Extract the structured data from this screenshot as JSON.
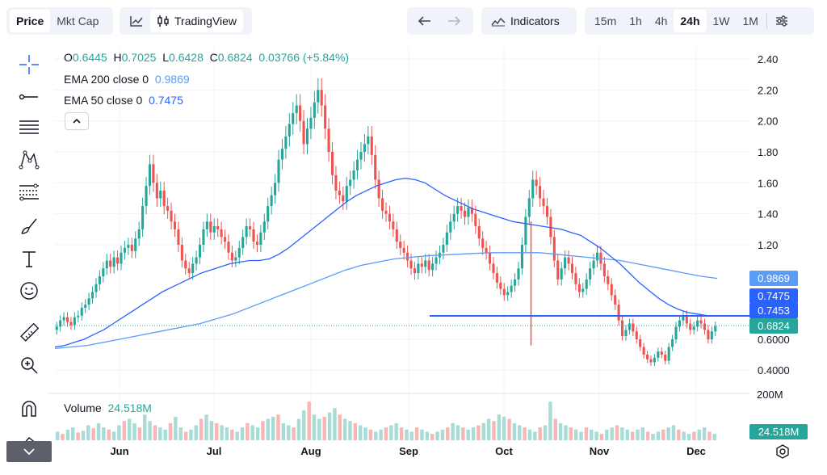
{
  "toolbar": {
    "price_tab": "Price",
    "mktcap_tab": "Mkt Cap",
    "tradingview_label": "TradingView",
    "indicators_label": "Indicators",
    "timeframes": [
      "15m",
      "1h",
      "4h",
      "24h",
      "1W",
      "1M"
    ],
    "active_timeframe": "24h"
  },
  "legend": {
    "o_label": "O",
    "o_value": "0.6445",
    "h_label": "H",
    "h_value": "0.7025",
    "l_label": "L",
    "l_value": "0.6428",
    "c_label": "C",
    "c_value": "0.6824",
    "change": "0.03766 (+5.84%)",
    "ema200_label": "EMA 200 close 0",
    "ema200_value": "0.9869",
    "ema50_label": "EMA 50 close 0",
    "ema50_value": "0.7475"
  },
  "price_tags": {
    "ema200": "0.9869",
    "ema50": "0.7475",
    "hline": "0.7453",
    "last": "0.6824",
    "volume": "24.518M"
  },
  "volume": {
    "label": "Volume",
    "value": "24.518M",
    "axis_label": "200M"
  },
  "colors": {
    "up": "#26a69a",
    "down": "#ef5350",
    "ema200": "#5b9cf6",
    "ema50": "#2962ff",
    "hline": "#2962ff"
  },
  "chart_data": {
    "type": "candlestick",
    "y_axis_ticks": [
      "2.40",
      "2.20",
      "2.00",
      "1.80",
      "1.60",
      "1.40",
      "1.20",
      "0.6000",
      "0.4000"
    ],
    "y_range": [
      0.3,
      2.45
    ],
    "x_axis_labels": [
      "Jun",
      "Jul",
      "Aug",
      "Sep",
      "Oct",
      "Nov",
      "Dec"
    ],
    "horizontal_line": 0.7453,
    "last_close": 0.6824,
    "ema200_last": 0.9869,
    "ema50_last": 0.7475,
    "close_series": [
      0.68,
      0.72,
      0.74,
      0.71,
      0.69,
      0.74,
      0.75,
      0.8,
      0.82,
      0.86,
      0.9,
      0.95,
      1.0,
      1.05,
      1.1,
      1.06,
      1.12,
      1.08,
      1.15,
      1.18,
      1.2,
      1.16,
      1.24,
      1.3,
      1.45,
      1.58,
      1.72,
      1.6,
      1.5,
      1.55,
      1.45,
      1.42,
      1.35,
      1.3,
      1.2,
      1.1,
      1.05,
      1.02,
      1.08,
      1.12,
      1.2,
      1.3,
      1.35,
      1.28,
      1.32,
      1.3,
      1.25,
      1.22,
      1.15,
      1.1,
      1.12,
      1.18,
      1.25,
      1.32,
      1.3,
      1.22,
      1.2,
      1.28,
      1.35,
      1.45,
      1.52,
      1.6,
      1.75,
      1.82,
      1.9,
      1.98,
      2.05,
      2.1,
      2.0,
      1.85,
      1.95,
      2.02,
      2.12,
      2.2,
      2.1,
      1.95,
      1.8,
      1.65,
      1.55,
      1.52,
      1.48,
      1.58,
      1.62,
      1.68,
      1.75,
      1.8,
      1.85,
      1.9,
      1.78,
      1.62,
      1.5,
      1.42,
      1.4,
      1.35,
      1.3,
      1.22,
      1.18,
      1.15,
      1.1,
      1.05,
      1.02,
      1.08,
      1.06,
      1.1,
      1.04,
      1.08,
      1.12,
      1.15,
      1.2,
      1.28,
      1.35,
      1.4,
      1.45,
      1.42,
      1.38,
      1.44,
      1.4,
      1.32,
      1.24,
      1.18,
      1.15,
      1.08,
      1.02,
      0.96,
      0.92,
      0.88,
      0.9,
      0.94,
      0.98,
      1.05,
      1.2,
      1.38,
      1.5,
      1.62,
      1.58,
      1.5,
      1.45,
      1.38,
      1.25,
      1.1,
      0.98,
      1.05,
      1.12,
      1.08,
      1.02,
      0.95,
      0.9,
      0.92,
      0.98,
      1.05,
      1.1,
      1.15,
      1.08,
      1.0,
      0.95,
      0.88,
      0.82,
      0.72,
      0.62,
      0.66,
      0.7,
      0.65,
      0.6,
      0.55,
      0.5,
      0.47,
      0.45,
      0.48,
      0.52,
      0.5,
      0.46,
      0.55,
      0.6,
      0.68,
      0.72,
      0.75,
      0.7,
      0.66,
      0.68,
      0.72,
      0.7,
      0.66,
      0.6,
      0.65,
      0.6824
    ],
    "ema50_series": [
      0.55,
      0.56,
      0.58,
      0.6,
      0.63,
      0.66,
      0.7,
      0.74,
      0.78,
      0.82,
      0.86,
      0.9,
      0.93,
      0.96,
      0.99,
      1.02,
      1.04,
      1.06,
      1.08,
      1.09,
      1.1,
      1.1,
      1.11,
      1.14,
      1.18,
      1.23,
      1.28,
      1.33,
      1.38,
      1.43,
      1.48,
      1.52,
      1.55,
      1.58,
      1.6,
      1.62,
      1.63,
      1.62,
      1.6,
      1.56,
      1.52,
      1.49,
      1.46,
      1.43,
      1.41,
      1.39,
      1.37,
      1.35,
      1.34,
      1.33,
      1.32,
      1.31,
      1.3,
      1.28,
      1.26,
      1.22,
      1.18,
      1.13,
      1.08,
      1.02,
      0.96,
      0.91,
      0.86,
      0.82,
      0.79,
      0.77,
      0.76,
      0.75,
      0.7475
    ],
    "ema200_series": [
      0.54,
      0.55,
      0.56,
      0.58,
      0.6,
      0.62,
      0.64,
      0.66,
      0.68,
      0.7,
      0.73,
      0.76,
      0.8,
      0.84,
      0.88,
      0.92,
      0.96,
      1.0,
      1.04,
      1.07,
      1.09,
      1.11,
      1.12,
      1.13,
      1.135,
      1.14,
      1.145,
      1.15,
      1.15,
      1.15,
      1.15,
      1.14,
      1.13,
      1.12,
      1.11,
      1.1,
      1.08,
      1.06,
      1.04,
      1.02,
      1.0,
      0.9869
    ],
    "volume_series": [
      0.2,
      0.15,
      0.25,
      0.3,
      0.18,
      0.22,
      0.35,
      0.28,
      0.4,
      0.3,
      0.25,
      0.2,
      0.35,
      0.45,
      0.5,
      0.4,
      0.3,
      0.6,
      0.45,
      0.35,
      0.3,
      0.25,
      0.4,
      0.55,
      0.3,
      0.2,
      0.25,
      0.35,
      0.5,
      0.6,
      0.45,
      0.4,
      0.35,
      0.3,
      0.25,
      0.2,
      0.3,
      0.4,
      0.35,
      0.3,
      0.45,
      0.5,
      0.55,
      0.6,
      0.4,
      0.35,
      0.3,
      0.5,
      0.7,
      0.9,
      0.6,
      0.5,
      0.55,
      0.65,
      0.75,
      0.6,
      0.5,
      0.45,
      0.4,
      0.35,
      0.3,
      0.25,
      0.2,
      0.25,
      0.3,
      0.35,
      0.4,
      0.3,
      0.25,
      0.2,
      0.3,
      0.25,
      0.2,
      0.15,
      0.2,
      0.25,
      0.3,
      0.4,
      0.35,
      0.3,
      0.25,
      0.3,
      0.35,
      0.4,
      0.5,
      0.45,
      0.6,
      0.55,
      0.5,
      0.4,
      0.35,
      0.3,
      0.25,
      0.2,
      0.3,
      0.35,
      0.9,
      0.5,
      0.4,
      0.35,
      0.3,
      0.25,
      0.2,
      0.3,
      0.25,
      0.2,
      0.15,
      0.25,
      0.3,
      0.35,
      0.3,
      0.25,
      0.2,
      0.25,
      0.3,
      0.2,
      0.15,
      0.2,
      0.25,
      0.3,
      0.35,
      0.25,
      0.2,
      0.15,
      0.2,
      0.25,
      0.3,
      0.2,
      0.15
    ]
  }
}
